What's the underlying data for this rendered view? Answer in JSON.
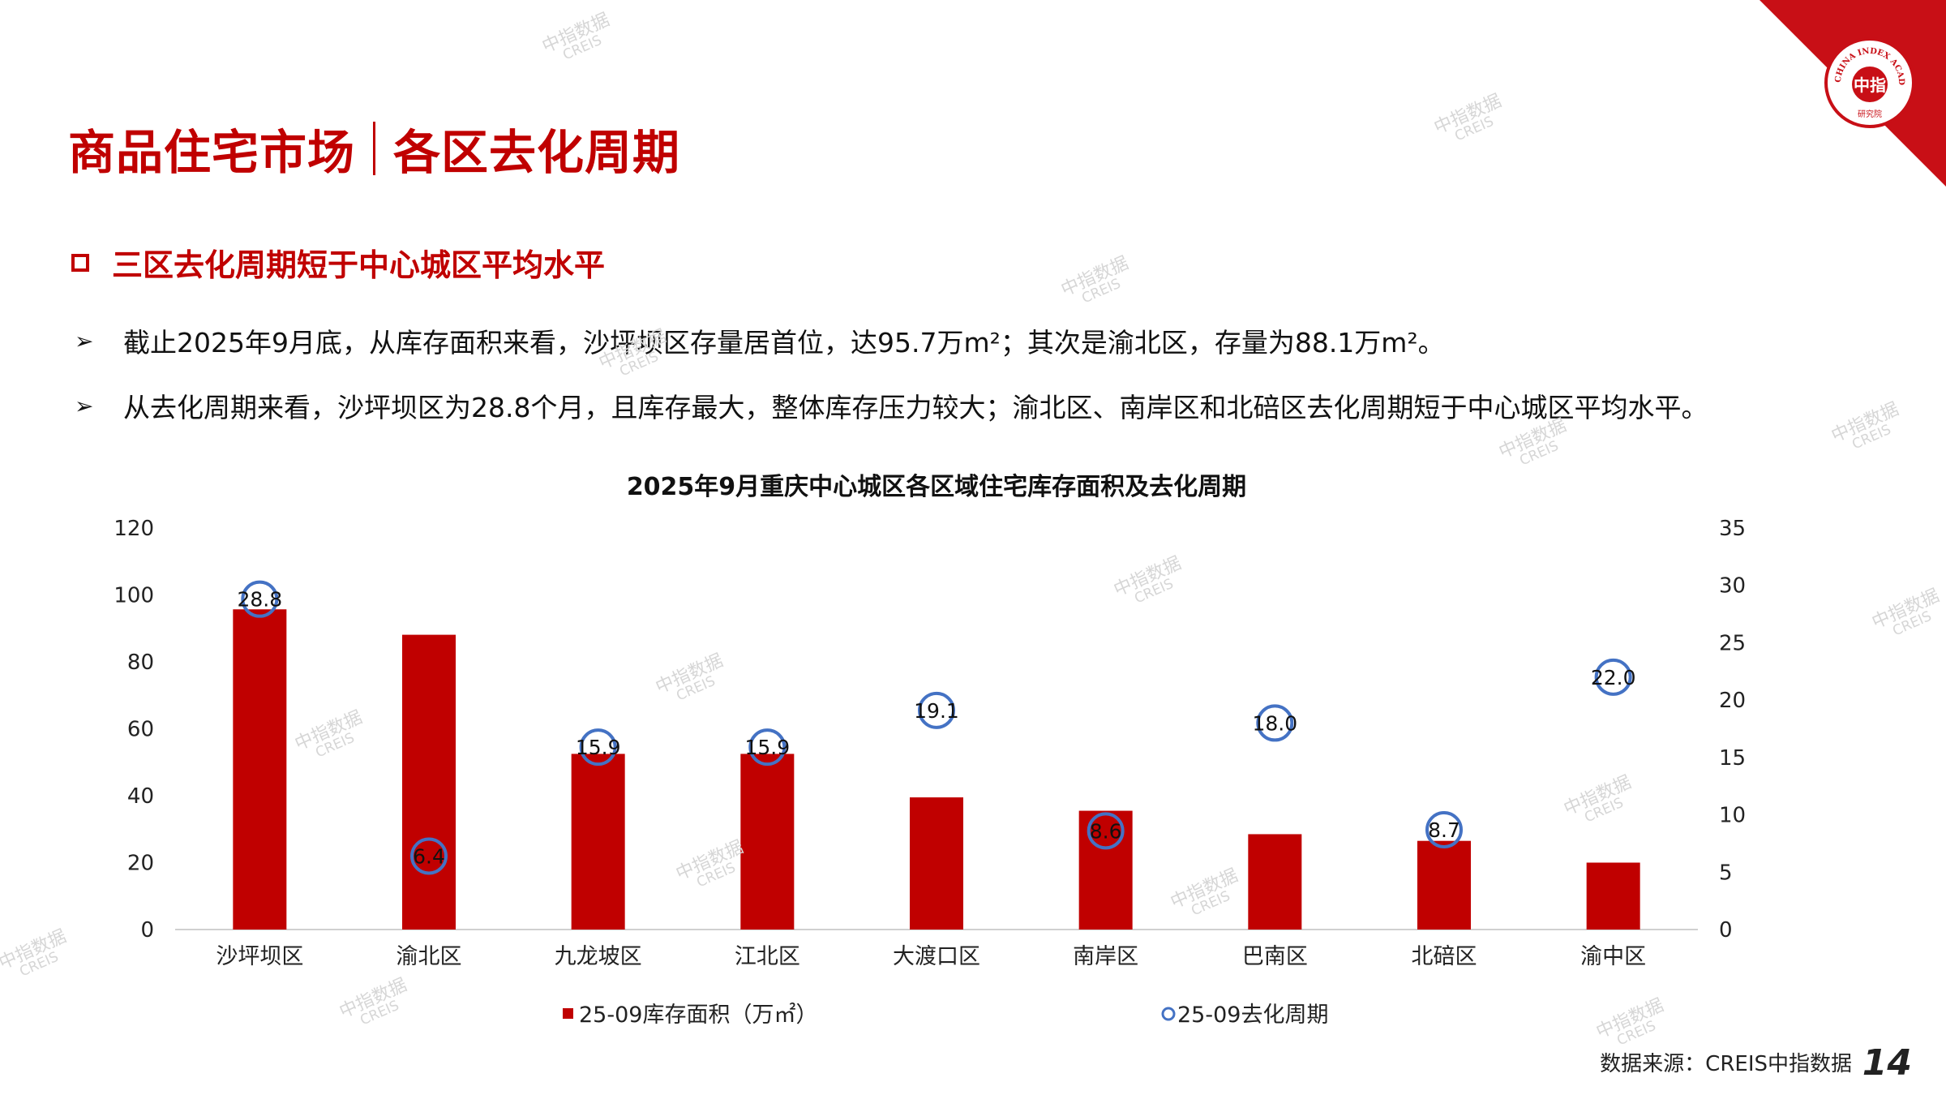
{
  "header": {
    "title_left": "商品住宅市场",
    "title_right": "各区去化周期",
    "logo_text": "CHINA INDEX ACADEMY",
    "logo_center": "中指",
    "logo_bottom": "研究院"
  },
  "subheading": "三区去化周期短于中心城区平均水平",
  "bullets": [
    "截止2025年9月底，从库存面积来看，沙坪坝区存量居首位，达95.7万m²；其次是渝北区，存量为88.1万m²。",
    "从去化周期来看，沙坪坝区为28.8个月，且库存最大，整体库存压力较大；渝北区、南岸区和北碚区去化周期短于中心城区平均水平。"
  ],
  "bullet_symbol": "➢",
  "footer": {
    "source": "数据来源：CREIS中指数据",
    "page": "14"
  },
  "watermark": {
    "line1": "中指数据",
    "line2": "CREIS"
  },
  "colors": {
    "accent": "#c00000",
    "bar": "#c00000",
    "line_marker": "#4472c4"
  },
  "chart_data": {
    "type": "bar",
    "title": "2025年9月重庆中心城区各区域住宅库存面积及去化周期",
    "categories": [
      "沙坪坝区",
      "渝北区",
      "九龙坡区",
      "江北区",
      "大渡口区",
      "南岸区",
      "巴南区",
      "北碚区",
      "渝中区"
    ],
    "series": [
      {
        "name": "25-09库存面积（万㎡）",
        "type": "bar",
        "axis": "left",
        "values": [
          95.7,
          88.1,
          52.5,
          52.5,
          39.5,
          35.5,
          28.5,
          26.5,
          20
        ]
      },
      {
        "name": "25-09去化周期",
        "type": "scatter",
        "axis": "right",
        "values": [
          28.8,
          6.4,
          15.9,
          15.9,
          19.1,
          8.6,
          18.0,
          8.7,
          22.0
        ],
        "labels": [
          "28.8",
          "6.4",
          "15.9",
          "15.9",
          "19.1",
          "8.6",
          "18.0",
          "8.7",
          "22.0"
        ]
      }
    ],
    "ylim_left": [
      0,
      120
    ],
    "yticks_left": [
      "0",
      "20",
      "40",
      "60",
      "80",
      "100",
      "120"
    ],
    "ylim_right": [
      0,
      35
    ],
    "yticks_right": [
      "0",
      "5",
      "10",
      "15",
      "20",
      "25",
      "30",
      "35"
    ],
    "legend_position": "bottom",
    "grid": false
  }
}
